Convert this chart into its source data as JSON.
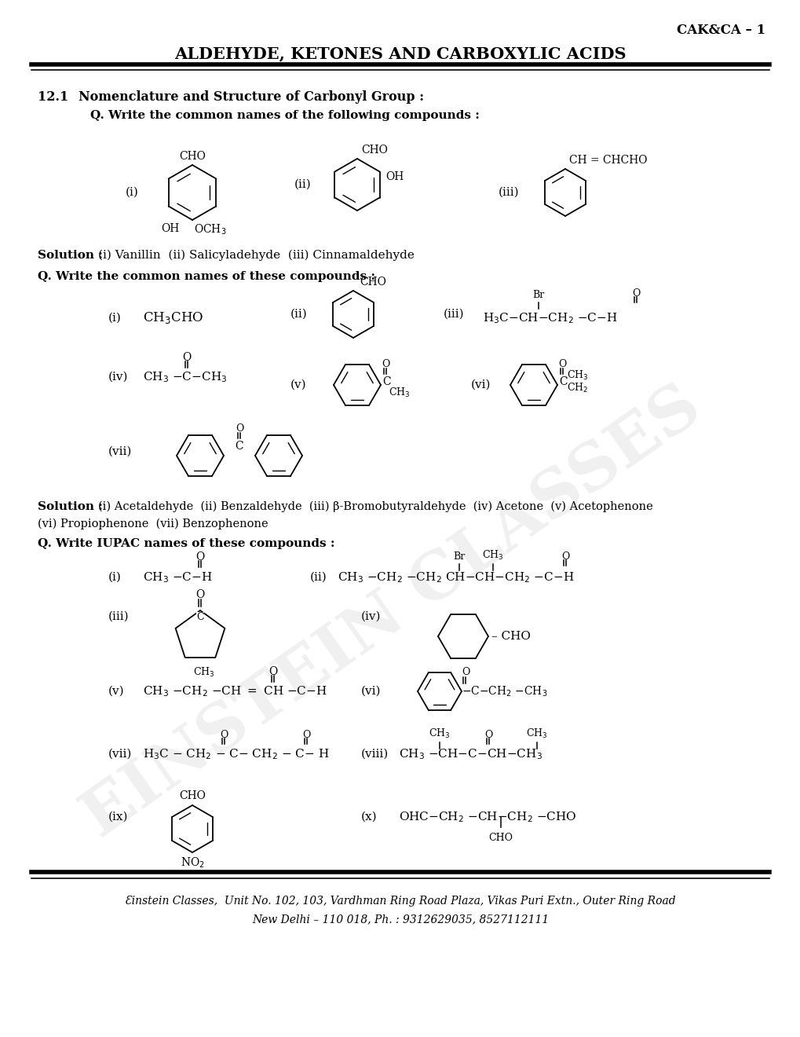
{
  "page_id": "CAK&CA – 1",
  "title": "ALDEHYDE, KETONES AND CARBOXYLIC ACIDS",
  "footer_line1": "Ɛinstein Classes,  Unit No. 102, 103, Vardhman Ring Road Plaza, Vikas Puri Extn., Outer Ring Road",
  "footer_line2": "New Delhi – 110 018, Ph. : 9312629035, 8527112111",
  "bg_color": "#ffffff"
}
